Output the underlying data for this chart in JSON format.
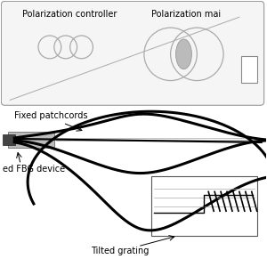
{
  "bg_color": "#ffffff",
  "labels": {
    "pol_controller": "Polarization controller",
    "pol_maintainer": "Polarization mai",
    "fixed_patchcords": "Fixed patchcords",
    "fbg_device": "ed FBG device",
    "tilted_grating": "Tilted grating"
  },
  "font_size": 7.0,
  "line_color": "#000000",
  "gray_color": "#aaaaaa",
  "dark_gray": "#555555",
  "fiber_lw": 2.2,
  "thin_lw": 0.7
}
